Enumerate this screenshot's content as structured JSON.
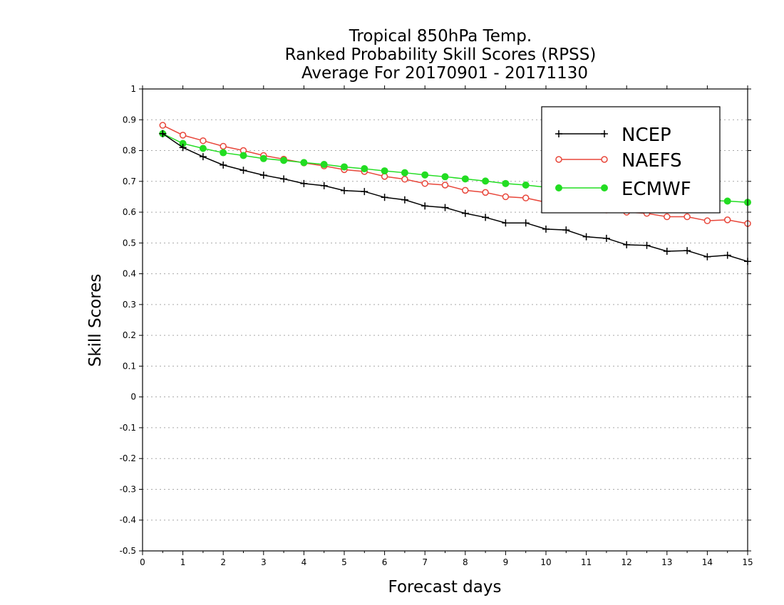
{
  "chart_data": {
    "type": "line",
    "title_lines": [
      "Tropical 850hPa Temp.",
      "Ranked Probability Skill Scores (RPSS)",
      "Average For 20170901 - 20171130"
    ],
    "xlabel": "Forecast days",
    "ylabel": "Skill Scores",
    "xlim": [
      0,
      15
    ],
    "ylim": [
      -0.5,
      1
    ],
    "x_ticks": [
      "0",
      "1",
      "2",
      "3",
      "4",
      "5",
      "6",
      "7",
      "8",
      "9",
      "10",
      "11",
      "12",
      "13",
      "14",
      "15"
    ],
    "y_ticks": [
      "1",
      "0.9",
      "0.8",
      "0.7",
      "0.6",
      "0.5",
      "0.4",
      "0.3",
      "0.2",
      "0.1",
      "0",
      "-0.1",
      "-0.2",
      "-0.3",
      "-0.4",
      "-0.5"
    ],
    "grid": true,
    "legend_position": "top-right",
    "x": [
      0.5,
      1,
      1.5,
      2,
      2.5,
      3,
      3.5,
      4,
      4.5,
      5,
      5.5,
      6,
      6.5,
      7,
      7.5,
      8,
      8.5,
      9,
      9.5,
      10,
      10.5,
      11,
      11.5,
      12,
      12.5,
      13,
      13.5,
      14,
      14.5,
      15
    ],
    "series": [
      {
        "name": "NCEP",
        "color": "#000000",
        "marker": "plus",
        "values": [
          0.855,
          0.81,
          0.78,
          0.753,
          0.736,
          0.72,
          0.708,
          0.693,
          0.686,
          0.67,
          0.667,
          0.648,
          0.64,
          0.62,
          0.615,
          0.596,
          0.583,
          0.565,
          0.565,
          0.545,
          0.542,
          0.52,
          0.515,
          0.494,
          0.492,
          0.473,
          0.475,
          0.455,
          0.46,
          0.44
        ]
      },
      {
        "name": "NAEFS",
        "color": "#e8463a",
        "marker": "open-circle",
        "values": [
          0.882,
          0.85,
          0.832,
          0.814,
          0.8,
          0.784,
          0.772,
          0.76,
          0.75,
          0.738,
          0.732,
          0.716,
          0.707,
          0.693,
          0.688,
          0.671,
          0.664,
          0.65,
          0.646,
          0.632,
          0.628,
          0.612,
          0.607,
          0.6,
          0.596,
          0.585,
          0.585,
          0.572,
          0.575,
          0.563
        ]
      },
      {
        "name": "ECMWF",
        "color": "#22dd22",
        "marker": "filled-circle",
        "values": [
          0.855,
          0.823,
          0.807,
          0.793,
          0.784,
          0.774,
          0.768,
          0.761,
          0.755,
          0.747,
          0.741,
          0.734,
          0.728,
          0.721,
          0.715,
          0.708,
          0.701,
          0.693,
          0.688,
          0.681,
          0.675,
          0.668,
          0.662,
          0.656,
          0.65,
          0.645,
          0.641,
          0.638,
          0.636,
          0.632
        ]
      }
    ]
  }
}
